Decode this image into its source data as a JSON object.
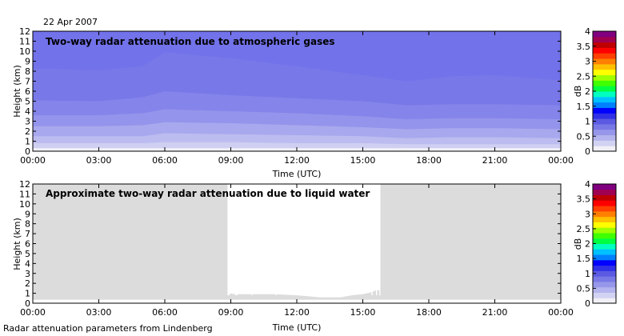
{
  "date": "22 Apr 2007",
  "footer": "Radar attenuation parameters from Lindenberg",
  "colors": {
    "frame": "#000000",
    "no_data_gray": "#dcdcdc",
    "colorbar": [
      "#f0f0f6",
      "#d2d2f2",
      "#b4b4ee",
      "#9696ea",
      "#7878e6",
      "#5a5ae2",
      "#3030e6",
      "#0000ff",
      "#0080ff",
      "#00c0ff",
      "#00ffc0",
      "#00ff40",
      "#40ff00",
      "#a0ff00",
      "#ffff00",
      "#ffc000",
      "#ff8000",
      "#ff4000",
      "#ff0000",
      "#c00000",
      "#a00050",
      "#800080"
    ]
  },
  "chart_data": [
    {
      "type": "heatmap",
      "title": "Two-way radar attenuation due to atmospheric gases",
      "xlabel": "Time (UTC)",
      "ylabel": "Height (km)",
      "xlim": [
        "00:00",
        "24:00"
      ],
      "ylim": [
        0,
        12
      ],
      "x_tick_labels": [
        "00:00",
        "03:00",
        "06:00",
        "09:00",
        "12:00",
        "15:00",
        "18:00",
        "21:00",
        "00:00"
      ],
      "y_tick_labels": [
        "0",
        "1",
        "2",
        "3",
        "4",
        "5",
        "6",
        "7",
        "8",
        "9",
        "10",
        "11",
        "12"
      ],
      "colorbar": {
        "label": "dB",
        "range": [
          0,
          4
        ],
        "tick_labels": [
          "0",
          "0.5",
          "1",
          "1.5",
          "2",
          "2.5",
          "3",
          "3.5",
          "4"
        ]
      },
      "x_hours": [
        0,
        3,
        5,
        6,
        9,
        12,
        15,
        17,
        19,
        21,
        24
      ],
      "contour_levels_dB": [
        0.13,
        0.26,
        0.39,
        0.52,
        0.65,
        0.78,
        0.91
      ],
      "contour_heights_km": [
        [
          0.3,
          0.3,
          0.3,
          0.3,
          0.3,
          0.3,
          0.3,
          0.3,
          0.3,
          0.3,
          0.3
        ],
        [
          0.8,
          0.8,
          0.8,
          0.9,
          0.9,
          0.8,
          0.8,
          0.7,
          0.7,
          0.7,
          0.7
        ],
        [
          1.5,
          1.5,
          1.5,
          1.8,
          1.7,
          1.6,
          1.5,
          1.3,
          1.4,
          1.4,
          1.3
        ],
        [
          2.5,
          2.5,
          2.6,
          2.9,
          2.8,
          2.6,
          2.4,
          2.2,
          2.3,
          2.3,
          2.2
        ],
        [
          3.6,
          3.6,
          3.8,
          4.2,
          4.0,
          3.8,
          3.5,
          3.2,
          3.3,
          3.3,
          3.2
        ],
        [
          5.1,
          5.0,
          5.4,
          6.0,
          5.6,
          5.3,
          5.0,
          4.6,
          4.7,
          4.7,
          4.6
        ],
        [
          8.3,
          8.1,
          8.5,
          9.9,
          9.3,
          8.5,
          7.6,
          7.0,
          7.5,
          7.6,
          7.1
        ]
      ]
    },
    {
      "type": "heatmap",
      "title": "Approximate two-way radar attenuation due to liquid water",
      "xlabel": "Time (UTC)",
      "ylabel": "Height (km)",
      "xlim": [
        "00:00",
        "24:00"
      ],
      "ylim": [
        0,
        12
      ],
      "x_tick_labels": [
        "00:00",
        "03:00",
        "06:00",
        "09:00",
        "12:00",
        "15:00",
        "18:00",
        "21:00",
        "00:00"
      ],
      "y_tick_labels": [
        "0",
        "1",
        "2",
        "3",
        "4",
        "5",
        "6",
        "7",
        "8",
        "9",
        "10",
        "11",
        "12"
      ],
      "colorbar": {
        "label": "dB",
        "range": [
          0,
          4
        ],
        "tick_labels": [
          "0",
          "0.5",
          "1",
          "1.5",
          "2",
          "2.5",
          "3",
          "3.5",
          "4"
        ]
      },
      "background": "no data (gray)",
      "white_region_base_km": {
        "hours": [
          8.9,
          9.2,
          10.0,
          11.0,
          12.0,
          12.5,
          13.0,
          14.0,
          14.5,
          15.0,
          15.4,
          15.6,
          15.8
        ],
        "base": [
          1.0,
          0.9,
          0.9,
          0.9,
          0.8,
          0.7,
          0.6,
          0.6,
          0.8,
          0.9,
          1.1,
          1.3,
          1.3
        ]
      },
      "white_vertical_gaps_hours": [
        [
          8.85,
          8.95
        ],
        [
          9.2,
          9.3
        ],
        [
          9.95,
          10.0
        ],
        [
          11.02,
          11.07
        ],
        [
          15.4,
          15.45
        ],
        [
          15.6,
          15.65
        ],
        [
          15.75,
          15.8
        ]
      ]
    }
  ]
}
